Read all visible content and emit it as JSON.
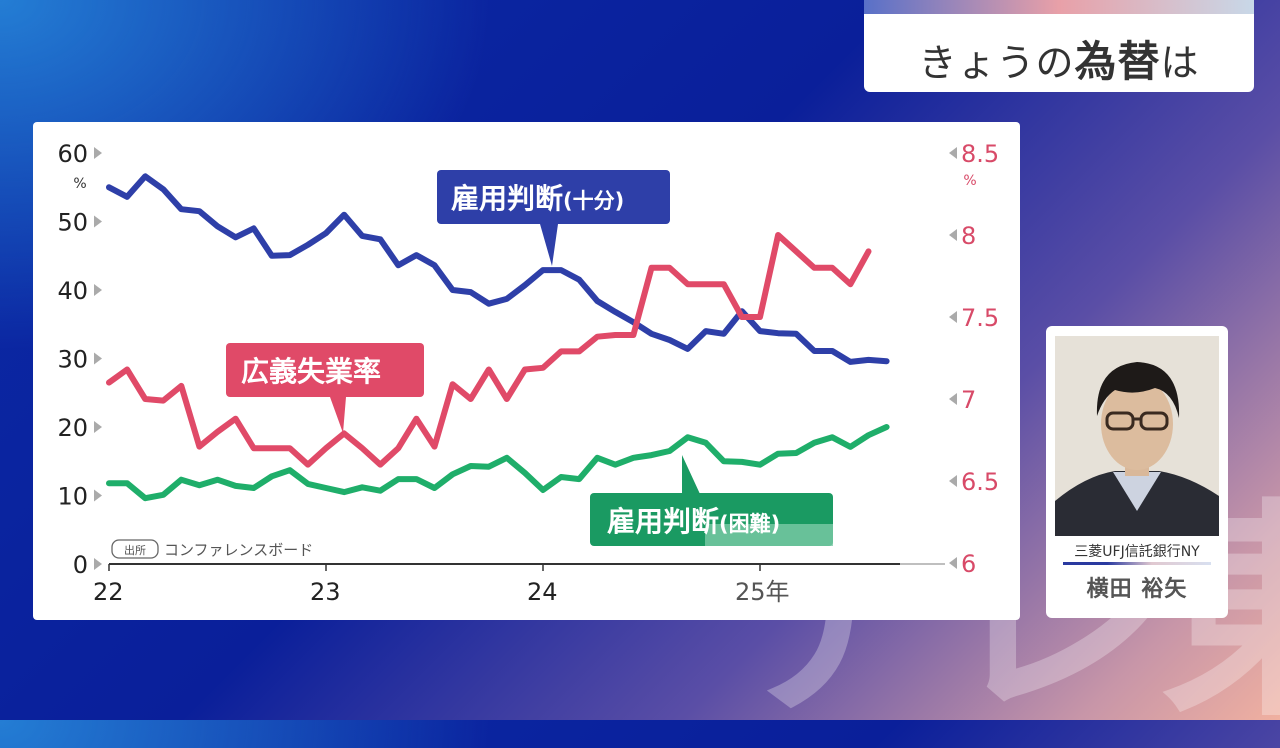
{
  "header": {
    "title_pre": "きょうの",
    "title_bold": "為替",
    "title_post": "は"
  },
  "watermark": "テレ東",
  "guest": {
    "organization": "三菱UFJ信託銀行NY",
    "name": "横田 裕矢"
  },
  "colors": {
    "blue": "#2e3fa8",
    "red": "#e04a68",
    "green": "#1fae6a",
    "axis_right": "#d84a68"
  },
  "chart_data": {
    "type": "line",
    "x_ticks": [
      "22",
      "23",
      "24",
      "25年"
    ],
    "x_start": "2022-01",
    "x_unit": "month",
    "left_axis": {
      "ticks": [
        "0",
        "10",
        "20",
        "30",
        "40",
        "50",
        "60"
      ],
      "unit": "%",
      "range": [
        0,
        60
      ]
    },
    "right_axis": {
      "ticks": [
        "6",
        "6.5",
        "7",
        "7.5",
        "8",
        "8.5"
      ],
      "unit": "%",
      "range": [
        6,
        8.5
      ]
    },
    "source_tag": "出所",
    "source": "コンファレンスボード",
    "series": [
      {
        "name": "雇用判断(十分)",
        "label_main": "雇用判断",
        "label_sub": "(十分)",
        "axis": "left",
        "color": "#2e3fa8",
        "values": [
          55,
          53.6,
          56.6,
          54.7,
          51.8,
          51.5,
          49.3,
          47.7,
          49,
          45,
          45.1,
          46.6,
          48.3,
          51,
          47.9,
          47.4,
          43.6,
          45.1,
          43.6,
          40,
          39.7,
          38,
          38.7,
          40.7,
          42.9,
          42.9,
          41.5,
          38.4,
          36.8,
          35.3,
          33.6,
          32.7,
          31.4,
          34,
          33.6,
          36.9,
          34,
          33.7,
          33.6,
          31.1,
          31.1,
          29.5,
          29.8,
          29.6
        ]
      },
      {
        "name": "広義失業率",
        "label_main": "広義失業率",
        "label_sub": "",
        "axis": "right",
        "color": "#e04a68",
        "values": [
          7.1,
          7.18,
          7.0,
          6.99,
          7.08,
          6.71,
          6.8,
          6.88,
          6.7,
          6.7,
          6.7,
          6.6,
          6.7,
          6.79,
          6.7,
          6.6,
          6.7,
          6.88,
          6.71,
          7.09,
          7.0,
          7.18,
          7.0,
          7.18,
          7.19,
          7.29,
          7.29,
          7.38,
          7.39,
          7.39,
          7.8,
          7.8,
          7.7,
          7.7,
          7.7,
          7.5,
          7.5,
          8.0,
          7.9,
          7.8,
          7.8,
          7.7,
          7.9
        ]
      },
      {
        "name": "雇用判断(困難)",
        "label_main": "雇用判断",
        "label_sub": "(困難)",
        "axis": "left",
        "color": "#1fae6a",
        "values": [
          11.8,
          11.8,
          9.6,
          10.1,
          12.3,
          11.5,
          12.3,
          11.4,
          11.1,
          12.8,
          13.7,
          11.7,
          11.1,
          10.5,
          11.2,
          10.7,
          12.4,
          12.4,
          11.1,
          13.1,
          14.3,
          14.2,
          15.5,
          13.3,
          10.8,
          12.7,
          12.4,
          15.5,
          14.5,
          15.5,
          15.9,
          16.5,
          18.5,
          17.7,
          15,
          14.9,
          14.5,
          16.1,
          16.2,
          17.7,
          18.5,
          17.1,
          18.8,
          20
        ]
      }
    ]
  }
}
